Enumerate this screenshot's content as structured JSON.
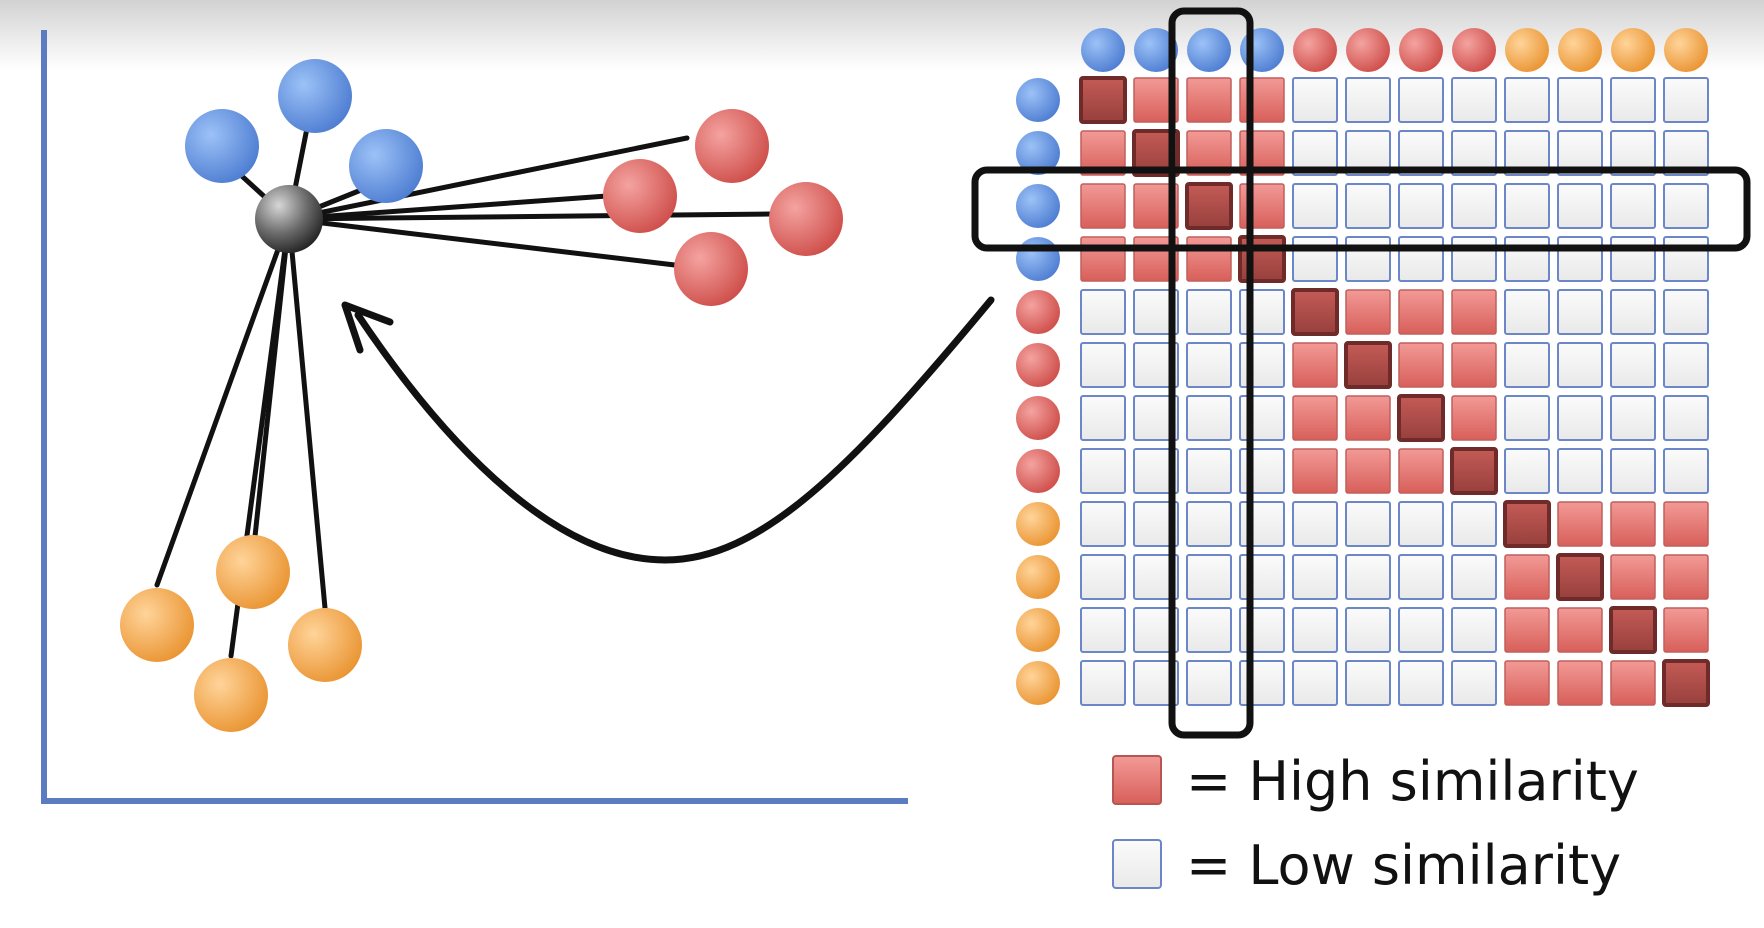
{
  "diagram": {
    "scatter": {
      "center_node": "gray-center-point",
      "clusters": [
        {
          "name": "blue",
          "color": "#6f9ee6",
          "count": 3
        },
        {
          "name": "red",
          "color": "#e06b67",
          "count": 4
        },
        {
          "name": "orange",
          "color": "#f0a54b",
          "count": 4
        }
      ]
    },
    "matrix": {
      "groups": [
        {
          "name": "blue",
          "color": "#6f9ee6",
          "size": 4
        },
        {
          "name": "red",
          "color": "#e06b67",
          "size": 4
        },
        {
          "name": "orange",
          "color": "#f0a54b",
          "size": 4
        }
      ],
      "highlighted_row": 3,
      "highlighted_col": 3,
      "high_color": "#e36d68",
      "diagonal_color": "#b14b48",
      "low_color": "#f2f2f2"
    },
    "legend": {
      "high_label": "= High similarity",
      "low_label": "= Low similarity"
    }
  }
}
